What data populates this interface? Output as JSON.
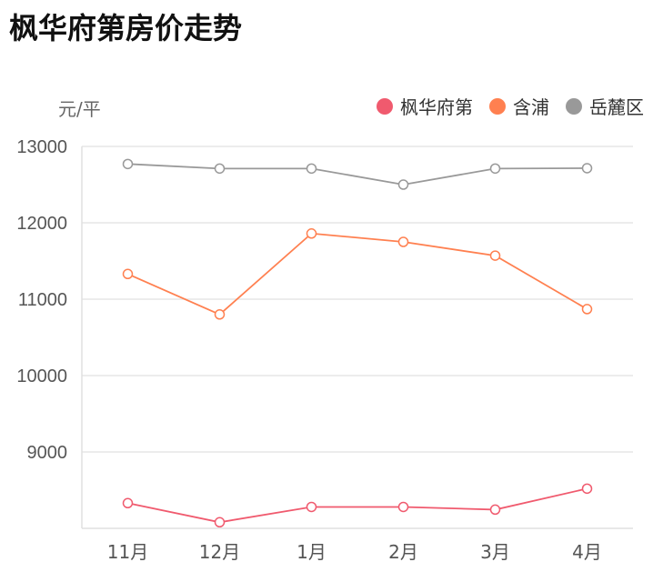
{
  "chart_data": {
    "type": "line",
    "title": "枫华府第房价走势",
    "ylabel": "元/平",
    "xlabel": "",
    "categories": [
      "11月",
      "12月",
      "1月",
      "2月",
      "3月",
      "4月"
    ],
    "ylim": [
      8000,
      13000
    ],
    "yticks": [
      9000,
      10000,
      11000,
      12000,
      13000
    ],
    "grid": true,
    "legend_position": "top-right",
    "series": [
      {
        "name": "枫华府第",
        "color": "#f05a6e",
        "values": [
          8330,
          8080,
          8280,
          8280,
          8245,
          8520
        ]
      },
      {
        "name": "含浦",
        "color": "#ff8050",
        "values": [
          11330,
          10800,
          11860,
          11750,
          11570,
          10870
        ]
      },
      {
        "name": "岳麓区",
        "color": "#999999",
        "values": [
          12770,
          12710,
          12710,
          12500,
          12710,
          12715
        ]
      }
    ]
  }
}
